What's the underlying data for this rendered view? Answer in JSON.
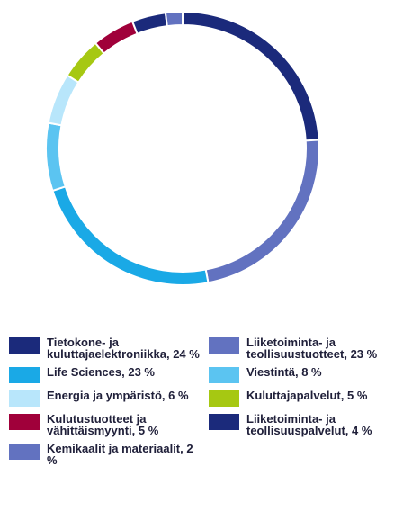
{
  "chart_data": {
    "type": "donut",
    "series": [
      {
        "name": "Tietokone- ja kuluttajaelektroniikka,",
        "value_label": "24 %",
        "value": 24,
        "color": "#1b2a7b"
      },
      {
        "name": "Liiketoiminta- ja teollisuustuotteet,",
        "value_label": "23 %",
        "value": 23,
        "color": "#6272c0"
      },
      {
        "name": "Life Sciences,",
        "value_label": "23 %",
        "value": 23,
        "color": "#1aa9e6"
      },
      {
        "name": "Viestintä,",
        "value_label": "8 %",
        "value": 8,
        "color": "#5bc4f1"
      },
      {
        "name": "Energia ja ympäristö,",
        "value_label": "6 %",
        "value": 6,
        "color": "#b8e6fb"
      },
      {
        "name": "Kuluttajapalvelut,",
        "value_label": "5 %",
        "value": 5,
        "color": "#a6c812"
      },
      {
        "name": "Kulutustuotteet ja vähittäismyynti,",
        "value_label": "5 %",
        "value": 5,
        "color": "#a0003a"
      },
      {
        "name": "Liiketoiminta- ja teollisuuspalvelut,",
        "value_label": "4 %",
        "value": 4,
        "color": "#1b2a7b"
      },
      {
        "name": "Kemikaalit ja materiaalit,",
        "value_label": "2 %",
        "value": 2,
        "color": "#6272c0"
      }
    ]
  }
}
